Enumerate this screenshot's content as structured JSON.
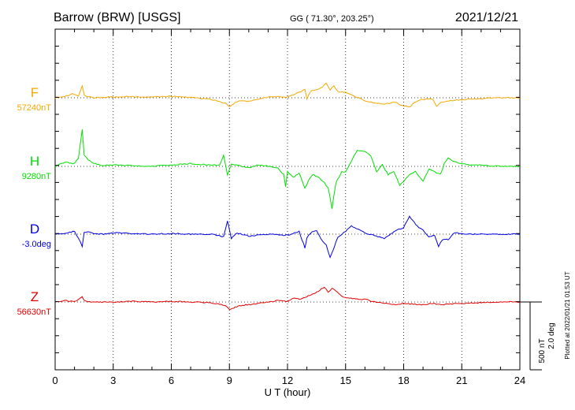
{
  "header": {
    "station": "Barrow (BRW)  [USGS]",
    "coords": "GG ( 71.30°, 203.25°)",
    "date": "2021/12/21"
  },
  "side_note": "Plotted at 2022/01/21 01:53 UT",
  "scale": {
    "nt": "500 nT",
    "deg": "2.0 deg"
  },
  "chart_data": {
    "type": "line",
    "title": "",
    "xlabel": "U T (hour)",
    "ylabel": "",
    "xlim": [
      0,
      24
    ],
    "xticks": [
      "0",
      "3",
      "6",
      "9",
      "12",
      "15",
      "18",
      "21",
      "24"
    ],
    "grid": true,
    "ylim_offset_nT": [
      -1050,
      650
    ],
    "series": [
      {
        "name": "F",
        "baseline_label": "57240nT",
        "color": "#f5a800",
        "offset": 0,
        "x": [
          0,
          0.5,
          0.9,
          1.2,
          1.4,
          1.5,
          1.6,
          1.8,
          2.0,
          3,
          4,
          5,
          6,
          7,
          7.5,
          8,
          8.5,
          8.8,
          9.0,
          9.2,
          9.5,
          10,
          10.5,
          11,
          11.5,
          12,
          12.3,
          12.6,
          12.9,
          13.0,
          13.2,
          13.5,
          13.8,
          14.0,
          14.2,
          14.4,
          14.6,
          15,
          15.5,
          16,
          16.5,
          17,
          17.5,
          18,
          18.3,
          18.6,
          19,
          19.5,
          19.7,
          20,
          20.5,
          21,
          21.5,
          22,
          23,
          24
        ],
        "y": [
          0,
          10,
          30,
          15,
          90,
          20,
          10,
          5,
          0,
          5,
          8,
          5,
          10,
          5,
          -5,
          -10,
          -30,
          -40,
          -70,
          -45,
          -25,
          -25,
          -10,
          5,
          10,
          5,
          20,
          40,
          60,
          -10,
          50,
          60,
          80,
          110,
          60,
          90,
          45,
          40,
          10,
          -20,
          -40,
          -50,
          -30,
          -60,
          -70,
          -30,
          -10,
          -10,
          -60,
          -30,
          -20,
          -15,
          -10,
          -5,
          0,
          0
        ]
      },
      {
        "name": "H",
        "baseline_label": "9280nT",
        "color": "#00e000",
        "offset": 0,
        "x": [
          0,
          0.5,
          1.0,
          1.2,
          1.4,
          1.5,
          1.7,
          2.0,
          2.5,
          3,
          4,
          5,
          6,
          7,
          7.5,
          8,
          8.5,
          8.7,
          8.9,
          9.1,
          9.5,
          10,
          10.5,
          11,
          11.5,
          11.8,
          11.9,
          12.0,
          12.3,
          12.6,
          12.9,
          13.1,
          13.3,
          13.6,
          13.9,
          14.1,
          14.3,
          14.5,
          14.8,
          15.0,
          15.3,
          15.6,
          16.0,
          16.3,
          16.6,
          16.9,
          17.2,
          17.5,
          17.8,
          18.0,
          18.3,
          18.6,
          19.0,
          19.3,
          19.6,
          19.9,
          20.1,
          20.3,
          20.5,
          21,
          21.5,
          22,
          23,
          24
        ],
        "y": [
          0,
          30,
          20,
          60,
          270,
          80,
          50,
          20,
          5,
          10,
          5,
          0,
          10,
          20,
          15,
          10,
          10,
          80,
          -60,
          20,
          5,
          -10,
          10,
          0,
          -10,
          -60,
          -150,
          -40,
          -80,
          -50,
          -160,
          -100,
          -60,
          -80,
          -120,
          -160,
          -310,
          -120,
          -40,
          -40,
          40,
          120,
          110,
          80,
          -40,
          10,
          -60,
          -40,
          -140,
          -110,
          -60,
          -40,
          -110,
          -20,
          -40,
          -60,
          20,
          60,
          40,
          20,
          10,
          10,
          0,
          0
        ]
      },
      {
        "name": "D",
        "baseline_label": "-3.0deg",
        "color": "#0000e0",
        "offset": 0,
        "x": [
          0,
          0.5,
          1.0,
          1.2,
          1.4,
          1.5,
          1.7,
          2.0,
          2.5,
          3,
          4,
          5,
          6,
          7,
          8,
          8.5,
          8.7,
          8.9,
          9.1,
          9.4,
          10,
          11,
          11.5,
          11.8,
          12.2,
          12.6,
          12.9,
          13.0,
          13.2,
          13.5,
          13.8,
          14.0,
          14.2,
          14.4,
          14.6,
          15.0,
          15.3,
          16.0,
          16.5,
          17.0,
          17.5,
          18.0,
          18.3,
          18.7,
          19.0,
          19.3,
          19.6,
          19.8,
          20.0,
          20.3,
          20.6,
          21,
          21.5,
          22,
          23,
          24
        ],
        "y": [
          0,
          5,
          20,
          -30,
          -90,
          10,
          20,
          5,
          0,
          10,
          5,
          0,
          5,
          0,
          0,
          -10,
          -20,
          100,
          -30,
          10,
          -15,
          0,
          -5,
          -10,
          0,
          20,
          -100,
          -30,
          10,
          30,
          -50,
          -80,
          -170,
          -100,
          -20,
          20,
          60,
          10,
          -10,
          -30,
          20,
          50,
          130,
          60,
          30,
          -20,
          -10,
          -90,
          -40,
          -40,
          10,
          5,
          0,
          0,
          0,
          0
        ]
      },
      {
        "name": "Z",
        "baseline_label": "56630nT",
        "color": "#e00000",
        "offset": 0,
        "x": [
          0,
          0.5,
          1.0,
          1.2,
          1.4,
          1.5,
          1.7,
          2.0,
          3,
          4,
          5,
          6,
          7,
          8,
          8.5,
          8.8,
          9.0,
          9.3,
          9.6,
          10,
          10.5,
          11,
          11.5,
          12,
          12.3,
          12.6,
          13.0,
          13.3,
          13.6,
          13.9,
          14.1,
          14.3,
          14.5,
          14.8,
          15.2,
          15.6,
          16,
          16.5,
          17,
          17.5,
          18,
          18.5,
          19,
          19.5,
          20,
          20.5,
          21,
          22,
          23,
          24
        ],
        "y": [
          0,
          10,
          5,
          15,
          40,
          10,
          5,
          0,
          0,
          5,
          0,
          5,
          0,
          -5,
          -15,
          -30,
          -55,
          -40,
          -25,
          -20,
          -10,
          0,
          10,
          5,
          30,
          20,
          40,
          60,
          80,
          110,
          70,
          100,
          80,
          40,
          30,
          20,
          20,
          0,
          -10,
          -20,
          -10,
          -15,
          -20,
          -10,
          -20,
          -15,
          -10,
          -5,
          0,
          0
        ]
      }
    ]
  }
}
